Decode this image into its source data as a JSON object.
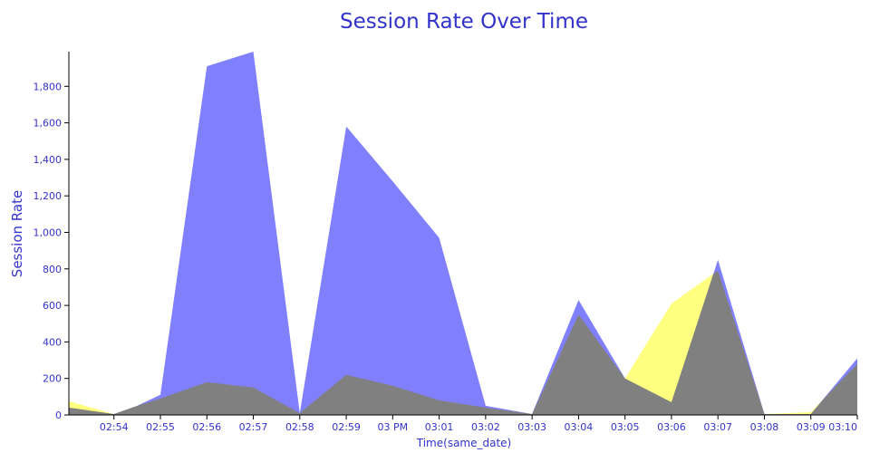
{
  "chart_data": {
    "type": "area",
    "title": "Session Rate Over Time",
    "xlabel": "Time(same_date)",
    "ylabel": "Session Rate",
    "ylim": [
      0,
      1990
    ],
    "y_ticks": [
      0,
      200,
      400,
      600,
      800,
      1000,
      1200,
      1400,
      1600,
      1800
    ],
    "y_tick_labels": [
      "0",
      "200",
      "400",
      "600",
      "800",
      "1,000",
      "1,200",
      "1,400",
      "1,600",
      "1,800"
    ],
    "x_tick_labels": [
      "02:54",
      "02:55",
      "02:56",
      "02:57",
      "02:58",
      "02:59",
      "03 PM",
      "03:01",
      "03:02",
      "03:03",
      "03:04",
      "03:05",
      "03:06",
      "03:07",
      "03:08",
      "03:09",
      "03:10"
    ],
    "x_minutes": [
      2.03,
      3,
      3.5,
      4,
      5,
      6,
      7,
      8,
      9,
      10,
      11,
      12,
      13,
      14,
      15,
      16,
      17,
      18,
      19
    ],
    "colors": {
      "text": "#3333cc",
      "axis": "#000000"
    },
    "series": [
      {
        "color": "#8080ff",
        "values": [
          40,
          5,
          50,
          110,
          1910,
          1990,
          10,
          1580,
          1280,
          970,
          50,
          5,
          630,
          200,
          70,
          850,
          5,
          5,
          310
        ]
      },
      {
        "color": "#ffff80",
        "values": [
          75,
          5,
          50,
          90,
          180,
          150,
          10,
          220,
          160,
          80,
          40,
          5,
          550,
          200,
          610,
          790,
          5,
          15,
          280
        ]
      }
    ]
  }
}
